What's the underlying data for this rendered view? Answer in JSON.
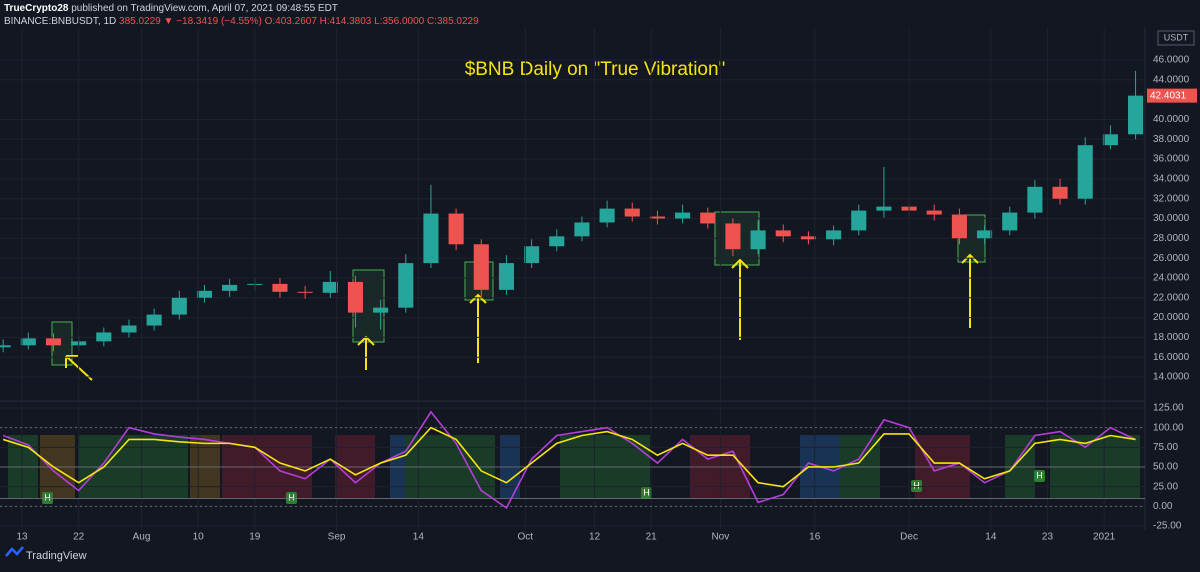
{
  "header": {
    "author": "TrueCrypto28",
    "published": "published on TradingView.com, April 07, 2021 09:48:55 EDT",
    "symbol": "BINANCE:BNBUSDT, 1D",
    "change": "385.0229 ▼ −18.3419 (−4.55%)",
    "ohlc": "O:403.2607 H:414.3803 L:356.0000 C:385.0229"
  },
  "footer": {
    "brand": "TradingView"
  },
  "chart_data": [
    {
      "type": "candlestick",
      "title": "$BNB Daily on \"True Vibration\"",
      "currency": "USDT",
      "up_color": "#26a69a",
      "down_color": "#ef5350",
      "last_color": "#ef5350",
      "x": [
        0,
        4,
        8,
        12,
        16,
        20,
        24,
        28,
        32,
        36,
        40,
        44,
        48,
        52,
        56,
        60,
        64,
        68,
        72,
        76,
        80,
        84,
        88,
        92,
        96,
        100,
        104,
        108,
        112,
        116,
        120,
        124,
        128,
        132,
        136,
        140,
        144,
        148,
        152,
        156,
        160,
        164,
        168,
        172,
        176,
        180
      ],
      "open": [
        17.0,
        17.2,
        17.9,
        17.2,
        17.6,
        18.5,
        19.2,
        20.3,
        22.0,
        22.7,
        23.3,
        23.4,
        22.6,
        22.5,
        23.6,
        20.5,
        21.0,
        25.5,
        30.5,
        27.4,
        22.8,
        25.5,
        27.2,
        28.2,
        29.6,
        31.0,
        30.2,
        30.0,
        30.6,
        29.5,
        26.9,
        28.8,
        28.2,
        27.9,
        28.8,
        30.8,
        31.2,
        30.8,
        30.4,
        28.0,
        28.8,
        30.6,
        33.2,
        32.0,
        37.4,
        38.5
      ],
      "high": [
        17.8,
        18.5,
        18.4,
        18.1,
        19.0,
        19.8,
        20.9,
        22.7,
        23.3,
        23.9,
        24.0,
        24.0,
        23.2,
        24.7,
        24.2,
        21.8,
        26.4,
        33.4,
        31.0,
        27.9,
        26.3,
        27.9,
        28.9,
        30.2,
        31.8,
        31.6,
        30.8,
        31.4,
        31.1,
        30.0,
        29.8,
        29.4,
        28.7,
        29.3,
        31.4,
        35.2,
        31.8,
        31.4,
        31.0,
        29.3,
        31.2,
        33.9,
        34.0,
        38.2,
        39.4,
        44.9
      ],
      "low": [
        16.5,
        16.8,
        16.6,
        16.7,
        17.1,
        18.0,
        18.7,
        19.8,
        21.5,
        22.1,
        22.7,
        22.0,
        21.9,
        22.0,
        19.0,
        18.8,
        20.5,
        25.0,
        26.8,
        22.0,
        22.3,
        25.0,
        26.7,
        27.7,
        29.1,
        29.7,
        29.4,
        29.5,
        29.0,
        26.2,
        26.4,
        27.6,
        27.4,
        27.3,
        28.3,
        30.1,
        30.2,
        29.8,
        27.4,
        27.4,
        28.3,
        30.0,
        31.4,
        31.4,
        37.0,
        38.0
      ],
      "close": [
        17.2,
        17.9,
        17.2,
        17.6,
        18.5,
        19.2,
        20.3,
        22.0,
        22.7,
        23.3,
        23.4,
        22.6,
        22.5,
        23.6,
        20.5,
        21.0,
        25.5,
        30.5,
        27.4,
        22.8,
        25.5,
        27.2,
        28.2,
        29.6,
        31.0,
        30.2,
        30.0,
        30.6,
        29.5,
        26.9,
        28.8,
        28.2,
        27.9,
        28.8,
        30.8,
        31.2,
        30.8,
        30.4,
        28.0,
        28.8,
        30.6,
        33.2,
        32.0,
        37.4,
        38.5,
        42.4031
      ],
      "xlim": [
        -0.5,
        181.5
      ],
      "ylim": [
        11.68,
        49.23
      ],
      "yticks": [
        {
          "value": 14,
          "label": "14.0000"
        },
        {
          "value": 16,
          "label": "16.0000"
        },
        {
          "value": 18,
          "label": "18.0000"
        },
        {
          "value": 20,
          "label": "20.0000"
        },
        {
          "value": 22,
          "label": "22.0000"
        },
        {
          "value": 24,
          "label": "24.0000"
        },
        {
          "value": 26,
          "label": "26.0000"
        },
        {
          "value": 28,
          "label": "28.0000"
        },
        {
          "value": 30,
          "label": "30.0000"
        },
        {
          "value": 32,
          "label": "32.0000"
        },
        {
          "value": 34,
          "label": "34.0000"
        },
        {
          "value": 36,
          "label": "36.0000"
        },
        {
          "value": 38,
          "label": "38.0000"
        },
        {
          "value": 40,
          "label": "40.0000"
        },
        {
          "value": 44,
          "label": "44.0000"
        },
        {
          "value": 46,
          "label": "46.0000"
        }
      ],
      "grid": true
    },
    {
      "type": "line",
      "x": [
        0,
        4,
        8,
        12,
        16,
        20,
        24,
        28,
        32,
        36,
        40,
        44,
        48,
        52,
        56,
        60,
        64,
        68,
        72,
        76,
        80,
        84,
        88,
        92,
        96,
        100,
        104,
        108,
        112,
        116,
        120,
        124,
        128,
        132,
        136,
        140,
        144,
        148,
        152,
        156,
        160,
        164,
        168,
        172,
        176,
        180
      ],
      "series": [
        {
          "color": "#b43fd8",
          "values": [
            90,
            78,
            45,
            20,
            55,
            100,
            92,
            88,
            85,
            80,
            75,
            45,
            35,
            60,
            30,
            55,
            70,
            120,
            80,
            20,
            -2,
            60,
            90,
            95,
            100,
            80,
            55,
            85,
            60,
            70,
            5,
            15,
            55,
            45,
            60,
            110,
            100,
            45,
            55,
            30,
            45,
            90,
            95,
            75,
            100,
            85
          ]
        },
        {
          "color": "#f5e50b",
          "values": [
            85,
            75,
            50,
            30,
            50,
            85,
            85,
            82,
            80,
            80,
            75,
            55,
            45,
            60,
            40,
            55,
            65,
            100,
            85,
            45,
            30,
            55,
            80,
            90,
            95,
            85,
            65,
            80,
            65,
            65,
            30,
            25,
            50,
            50,
            55,
            92,
            92,
            55,
            55,
            35,
            45,
            80,
            85,
            80,
            90,
            85
          ]
        }
      ],
      "hlines": [
        100,
        50,
        10,
        0
      ],
      "signal_labels": [
        "H",
        "H",
        "H",
        "H",
        "H"
      ],
      "xlim": [
        -0.5,
        181.5
      ],
      "ylim": [
        -30.1,
        132.6
      ],
      "yticks": [
        {
          "value": 125,
          "label": "125.00"
        },
        {
          "value": 100,
          "label": "100.00"
        },
        {
          "value": 75,
          "label": "75.00"
        },
        {
          "value": 50,
          "label": "50.00"
        },
        {
          "value": 25,
          "label": "25.00"
        },
        {
          "value": 0,
          "label": "0.00"
        },
        {
          "value": -25,
          "label": "-25.00"
        }
      ],
      "xticks": [
        {
          "value": 3,
          "label": "13"
        },
        {
          "value": 12,
          "label": "22"
        },
        {
          "value": 22,
          "label": "Aug"
        },
        {
          "value": 31,
          "label": "10"
        },
        {
          "value": 40,
          "label": "19"
        },
        {
          "value": 53,
          "label": "Sep"
        },
        {
          "value": 66,
          "label": "14"
        },
        {
          "value": 83,
          "label": "Oct"
        },
        {
          "value": 94,
          "label": "12"
        },
        {
          "value": 103,
          "label": "21"
        },
        {
          "value": 114,
          "label": "Nov"
        },
        {
          "value": 129,
          "label": "16"
        },
        {
          "value": 144,
          "label": "Dec"
        },
        {
          "value": 157,
          "label": "14"
        },
        {
          "value": 166,
          "label": "23"
        },
        {
          "value": 175,
          "label": "2021"
        }
      ],
      "grid": true
    }
  ]
}
